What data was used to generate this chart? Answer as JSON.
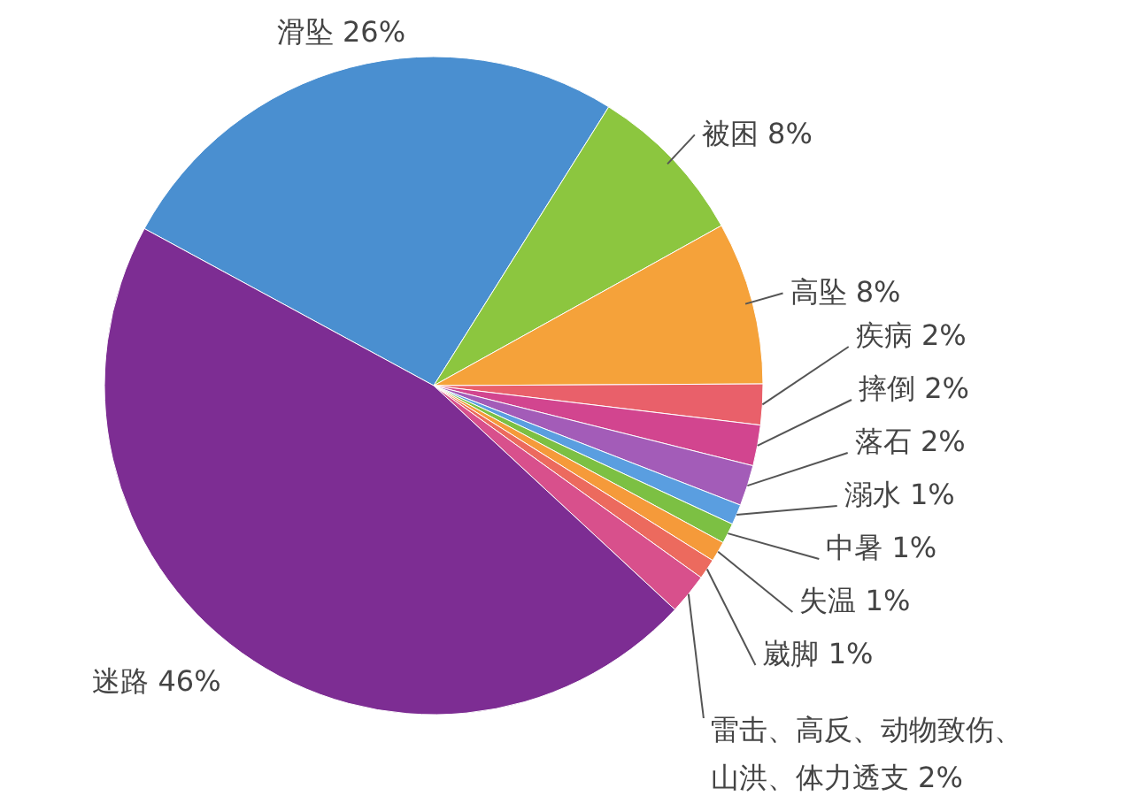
{
  "chart_data": {
    "type": "pie",
    "categories": [
      "滑坠",
      "被困",
      "高坠",
      "疾病",
      "摔倒",
      "落石",
      "溺水",
      "中暑",
      "失温",
      "崴脚",
      "雷击、高反、动物致伤、山洪、体力透支",
      "迷路"
    ],
    "values": [
      26,
      8,
      8,
      2,
      2,
      2,
      1,
      1,
      1,
      1,
      2,
      46
    ],
    "value_labels": [
      "26%",
      "8%",
      "8%",
      "2%",
      "2%",
      "2%",
      "1%",
      "1%",
      "1%",
      "1%",
      "2%",
      "46%"
    ],
    "colors": [
      "#4a8fd0",
      "#8cc63f",
      "#f5a23a",
      "#e9606a",
      "#d2458f",
      "#a35cb8",
      "#5a9ee0",
      "#7cc043",
      "#f59a3a",
      "#ec6a5e",
      "#d8508c",
      "#7d2d93"
    ]
  }
}
